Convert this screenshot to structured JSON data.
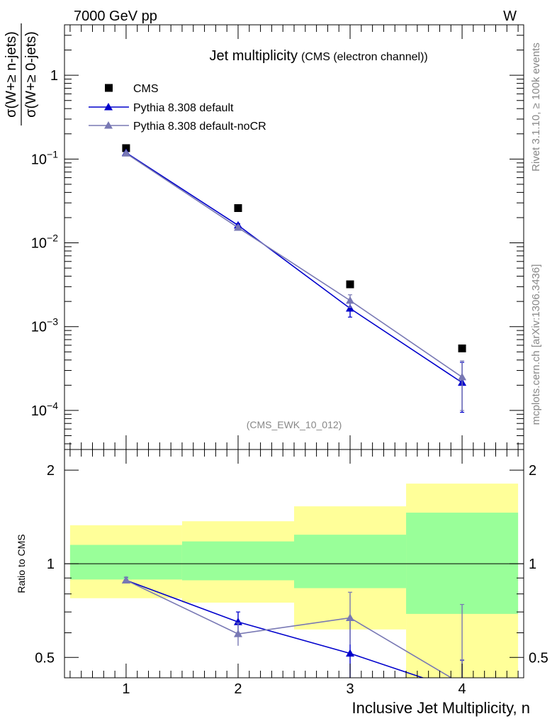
{
  "header": {
    "left": "7000 GeV pp",
    "right": "W",
    "side_top": "Rivet 3.1.10, ≥ 100k events",
    "side_bottom": "mcplots.cern.ch [arXiv:1306.3436]"
  },
  "main": {
    "title": "Jet multiplicity",
    "subtitle": "(CMS (electron channel))",
    "ylabel_num": "σ(W+≥ n-jets)",
    "ylabel_den": "σ(W+≥ 0-jets)",
    "watermark": "(CMS_EWK_10_012)",
    "y_ticks": [
      {
        "value": 1,
        "label": "1"
      },
      {
        "value": 0.1,
        "base": "10",
        "exp": "−1"
      },
      {
        "value": 0.01,
        "base": "10",
        "exp": "−2"
      },
      {
        "value": 0.001,
        "base": "10",
        "exp": "−3"
      },
      {
        "value": 0.0001,
        "base": "10",
        "exp": "−4"
      }
    ]
  },
  "ratio": {
    "ylabel": "Ratio to CMS",
    "y_ticks": [
      "0.5",
      "1",
      "2"
    ]
  },
  "xaxis": {
    "label": "Inclusive Jet Multiplicity, n",
    "ticks": [
      "1",
      "2",
      "3",
      "4"
    ]
  },
  "colors": {
    "data": "#000000",
    "default": "#0000cc",
    "nocr": "#7878b4",
    "band_inner": "#99ff99",
    "band_outer": "#ffff99"
  },
  "chart_data": [
    {
      "type": "scatter",
      "title": "Jet multiplicity (CMS (electron channel))",
      "xlabel": "",
      "ylabel": "σ(W+≥ n-jets) / σ(W+≥ 0-jets)",
      "yscale": "log",
      "xlim": [
        0.45,
        4.55
      ],
      "ylim": [
        3.42e-05,
        4.0
      ],
      "x": [
        1,
        2,
        3,
        4
      ],
      "legend_position": "top-left",
      "series": [
        {
          "name": "CMS",
          "marker": "square",
          "values": [
            0.135,
            0.026,
            0.0032,
            0.00055
          ]
        },
        {
          "name": "Pythia 8.308 default",
          "marker": "triangle",
          "values": [
            0.119,
            0.0162,
            0.00165,
            0.000215
          ],
          "err_low": [
            0.003,
            0.0008,
            0.00035,
            0.00012
          ],
          "err_high": [
            0.003,
            0.0008,
            0.00035,
            0.00016
          ]
        },
        {
          "name": "Pythia 8.308 default-noCR",
          "marker": "triangle",
          "values": [
            0.117,
            0.0152,
            0.00205,
            0.00025
          ],
          "err_low": [
            0.003,
            0.0008,
            0.00035,
            0.00015
          ],
          "err_high": [
            0.003,
            0.0008,
            0.00035,
            0.00014
          ]
        }
      ]
    },
    {
      "type": "line",
      "title": "",
      "xlabel": "Inclusive Jet Multiplicity, n",
      "ylabel": "Ratio to CMS",
      "yscale": "log",
      "xlim": [
        0.45,
        4.55
      ],
      "ylim": [
        0.43,
        2.33
      ],
      "x": [
        1,
        2,
        3,
        4
      ],
      "bins": [
        [
          0.5,
          1.5
        ],
        [
          1.5,
          2.5
        ],
        [
          2.5,
          3.5
        ],
        [
          3.5,
          4.5
        ]
      ],
      "band_inner": [
        [
          0.89,
          1.15
        ],
        [
          0.885,
          1.18
        ],
        [
          0.835,
          1.24
        ],
        [
          0.69,
          1.46
        ]
      ],
      "band_outer": [
        [
          0.775,
          1.33
        ],
        [
          0.75,
          1.37
        ],
        [
          0.615,
          1.53
        ],
        [
          0.41,
          1.81
        ]
      ],
      "series": [
        {
          "name": "Pythia 8.308 default",
          "values": [
            0.885,
            0.65,
            0.515,
            0.39
          ],
          "err_low": [
            0.02,
            0.05,
            0.19,
            0.1
          ],
          "err_high": [
            0.02,
            0.05,
            0.15,
            0.1
          ]
        },
        {
          "name": "Pythia 8.308 default-noCR",
          "values": [
            0.885,
            0.595,
            0.67,
            0.41
          ],
          "err_low": [
            0.02,
            0.05,
            0.12,
            0.17
          ],
          "err_high": [
            0.02,
            0.05,
            0.14,
            0.33
          ]
        }
      ]
    }
  ]
}
